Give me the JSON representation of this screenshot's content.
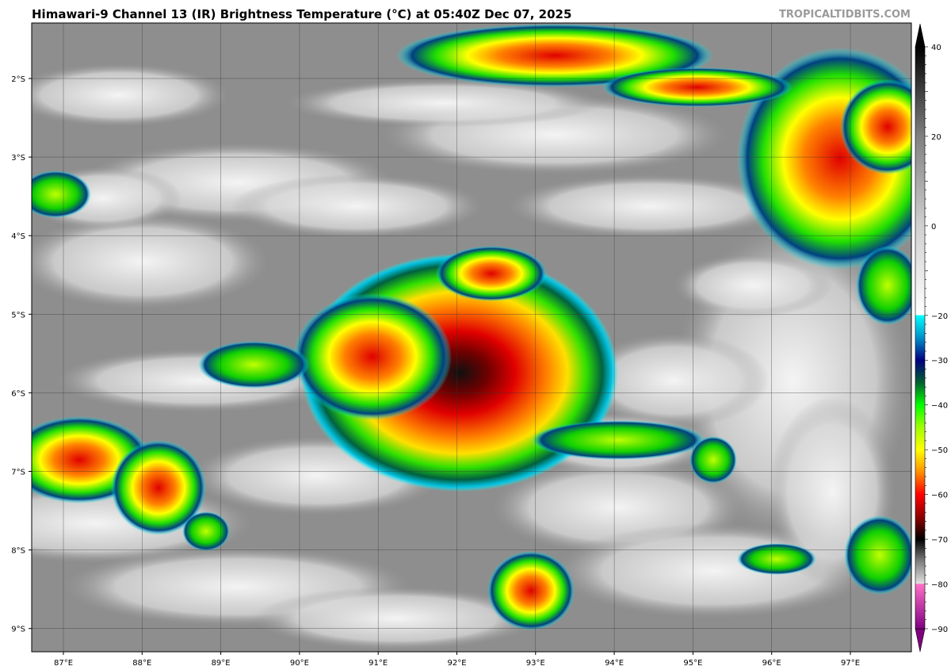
{
  "title": "Himawari-9 Channel 13 (IR) Brightness Temperature (°C) at 05:40Z Dec 07, 2025",
  "watermark": "TROPICALTIDBITS.COM",
  "map": {
    "lon_labels": [
      "87°E",
      "88°E",
      "89°E",
      "90°E",
      "91°E",
      "92°E",
      "93°E",
      "94°E",
      "95°E",
      "96°E",
      "97°E"
    ],
    "lat_labels": [
      "2°S",
      "3°S",
      "4°S",
      "5°S",
      "6°S",
      "7°S",
      "8°S",
      "9°S"
    ],
    "grid": true
  },
  "colorbar": {
    "range": [
      -90,
      40
    ],
    "tick_labels": [
      "40",
      "20",
      "0",
      "−20",
      "−30",
      "−40",
      "−50",
      "−60",
      "−70",
      "−80",
      "−90"
    ],
    "tick_values": [
      40,
      20,
      0,
      -20,
      -30,
      -40,
      -50,
      -60,
      -70,
      -80,
      -90
    ],
    "stops": [
      {
        "t": 40,
        "c": "#000000"
      },
      {
        "t": 20,
        "c": "#808080"
      },
      {
        "t": 0,
        "c": "#d0d0d0"
      },
      {
        "t": -19.9,
        "c": "#ffffff"
      },
      {
        "t": -20,
        "c": "#00ffff"
      },
      {
        "t": -25,
        "c": "#0090c8"
      },
      {
        "t": -30,
        "c": "#000080"
      },
      {
        "t": -35,
        "c": "#006030"
      },
      {
        "t": -40,
        "c": "#00ff00"
      },
      {
        "t": -45,
        "c": "#a0ff00"
      },
      {
        "t": -50,
        "c": "#ffff00"
      },
      {
        "t": -55,
        "c": "#ff9000"
      },
      {
        "t": -60,
        "c": "#ff0000"
      },
      {
        "t": -65,
        "c": "#900000"
      },
      {
        "t": -70,
        "c": "#000000"
      },
      {
        "t": -75,
        "c": "#808080"
      },
      {
        "t": -79.9,
        "c": "#e0e0e0"
      },
      {
        "t": -80,
        "c": "#ff70c8"
      },
      {
        "t": -90,
        "c": "#800080"
      }
    ]
  }
}
